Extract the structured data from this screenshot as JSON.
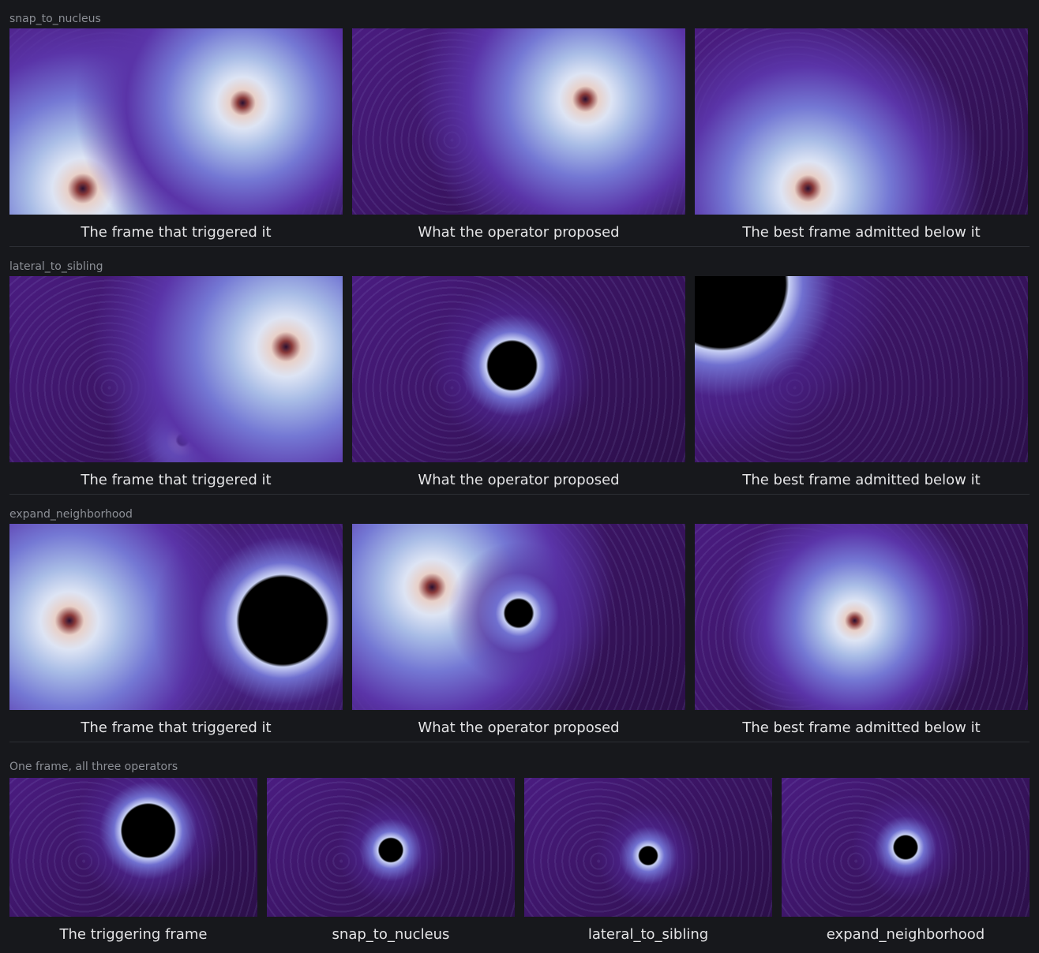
{
  "sections": [
    {
      "label": "snap_to_nucleus",
      "panels": [
        {
          "caption": "The frame that triggered it"
        },
        {
          "caption": "What the operator proposed"
        },
        {
          "caption": "The best frame admitted below it"
        }
      ]
    },
    {
      "label": "lateral_to_sibling",
      "panels": [
        {
          "caption": "The frame that triggered it"
        },
        {
          "caption": "What the operator proposed"
        },
        {
          "caption": "The best frame admitted below it"
        }
      ]
    },
    {
      "label": "expand_neighborhood",
      "panels": [
        {
          "caption": "The frame that triggered it"
        },
        {
          "caption": "What the operator proposed"
        },
        {
          "caption": "The best frame admitted below it"
        }
      ]
    }
  ],
  "comparison": {
    "label": "One frame, all three operators",
    "panels": [
      {
        "caption": "The triggering frame"
      },
      {
        "caption": "snap_to_nucleus"
      },
      {
        "caption": "lateral_to_sibling"
      },
      {
        "caption": "expand_neighborhood"
      }
    ]
  }
}
